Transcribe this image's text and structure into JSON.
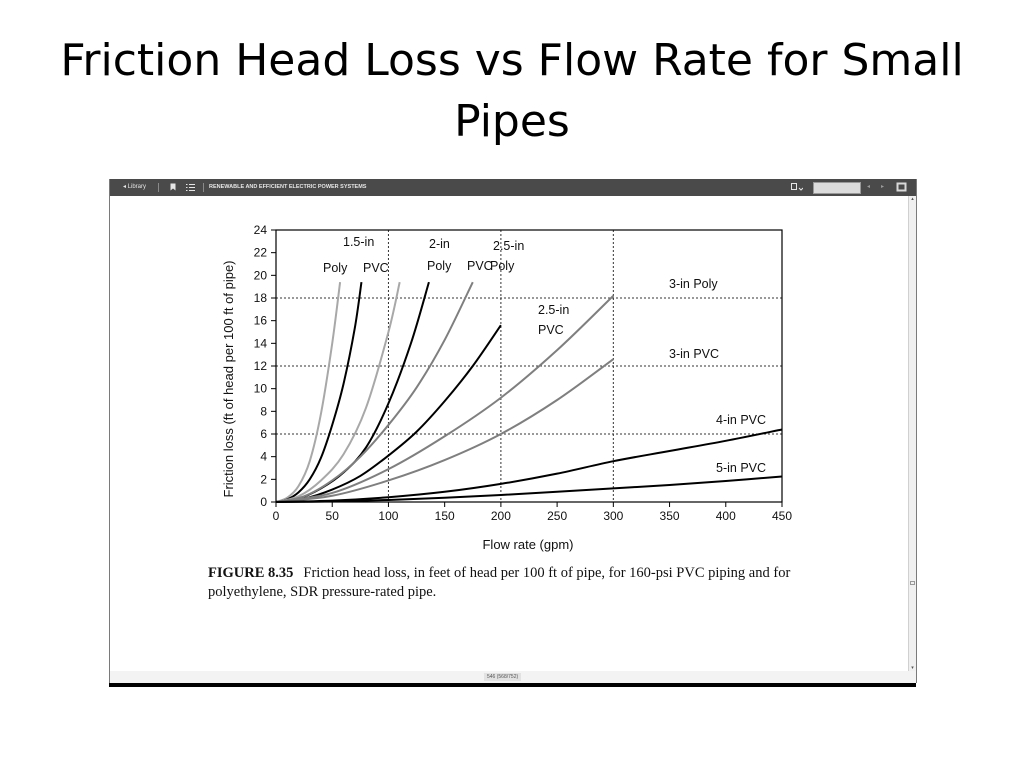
{
  "slide": {
    "title": "Friction Head Loss vs Flow Rate for Small Pipes"
  },
  "viewer": {
    "library_label": "◂ Library",
    "book_title": "RENEWABLE AND EFFICIENT ELECTRIC POWER SYSTEMS",
    "page_indicator": "546 (568/752)"
  },
  "icons": [
    "back-arrow-icon",
    "bookmark-icon",
    "list-icon",
    "page-options-icon",
    "search-icon",
    "prev-icon",
    "next-icon",
    "fullscreen-icon"
  ],
  "colors": {
    "black_curves": "#000000",
    "gray_curves": "#7f7f7f",
    "light_curves": "#a8a8a8",
    "toolbar": "#4a4a4a"
  },
  "figure": {
    "number": "FIGURE 8.35",
    "caption": "Friction head loss, in feet of head per 100 ft of pipe, for 160-psi PVC piping and for polyethylene, SDR pressure-rated pipe."
  },
  "chart_data": {
    "type": "line",
    "title": "",
    "xlabel": "Flow rate (gpm)",
    "ylabel": "Friction loss (ft of head per 100 ft of pipe)",
    "xlim": [
      0,
      450
    ],
    "ylim": [
      0,
      24
    ],
    "xticks": [
      0,
      50,
      100,
      150,
      200,
      250,
      300,
      350,
      400,
      450
    ],
    "yticks": [
      0,
      2,
      4,
      6,
      8,
      10,
      12,
      14,
      16,
      18,
      20,
      22,
      24
    ],
    "grid": "dotted lines at x = 100, 200, 300 and y = 6, 12, 18",
    "series": [
      {
        "key": "p15poly",
        "label_lines": [
          "",
          "Poly"
        ],
        "tone": "light",
        "x": [
          0,
          10,
          20,
          30,
          40,
          50,
          57
        ],
        "y": [
          0,
          0.38,
          1.4,
          3.6,
          7.8,
          14.0,
          19.4
        ]
      },
      {
        "key": "p15pvc",
        "label_lines": [
          "1.5-in",
          "PVC"
        ],
        "tone": "black",
        "x": [
          0,
          10,
          20,
          30,
          40,
          50,
          60,
          70,
          76
        ],
        "y": [
          0,
          0.23,
          0.85,
          2.0,
          3.9,
          6.8,
          10.4,
          15.3,
          19.4
        ]
      },
      {
        "key": "p2poly",
        "label_lines": [
          "",
          "Poly"
        ],
        "tone": "light",
        "x": [
          0,
          20,
          40,
          60,
          80,
          100,
          110
        ],
        "y": [
          0,
          0.5,
          1.9,
          4.2,
          8.3,
          15.0,
          19.4
        ]
      },
      {
        "key": "p2pvc",
        "label_lines": [
          "2-in",
          "PVC"
        ],
        "tone": "black",
        "x": [
          0,
          20,
          40,
          60,
          80,
          100,
          120,
          136
        ],
        "y": [
          0,
          0.3,
          1.2,
          2.6,
          4.8,
          8.7,
          14.0,
          19.4
        ]
      },
      {
        "key": "p25poly",
        "label_lines": [
          "2.5-in",
          "Poly"
        ],
        "tone": "gray",
        "x": [
          0,
          25,
          50,
          75,
          100,
          125,
          150,
          175
        ],
        "y": [
          0,
          0.5,
          1.9,
          4.0,
          6.8,
          10.1,
          14.3,
          19.4
        ]
      },
      {
        "key": "p25pvc",
        "label_lines": [
          "2.5-in",
          "PVC"
        ],
        "tone": "black",
        "x": [
          0,
          25,
          50,
          75,
          100,
          125,
          150,
          175,
          200
        ],
        "y": [
          0,
          0.3,
          1.1,
          2.3,
          4.1,
          6.2,
          8.9,
          12.0,
          15.6
        ]
      },
      {
        "key": "p3poly",
        "label_lines": [
          "3-in Poly"
        ],
        "tone": "gray",
        "x": [
          0,
          50,
          100,
          150,
          200,
          250,
          300
        ],
        "y": [
          0,
          0.8,
          2.9,
          5.8,
          9.2,
          13.4,
          18.2
        ]
      },
      {
        "key": "p3pvc",
        "label_lines": [
          "3-in PVC"
        ],
        "tone": "gray",
        "x": [
          0,
          50,
          100,
          150,
          200,
          250,
          300
        ],
        "y": [
          0,
          0.55,
          1.9,
          3.7,
          6.0,
          9.0,
          12.6
        ]
      },
      {
        "key": "p4pvc",
        "label_lines": [
          "4-in PVC"
        ],
        "tone": "black",
        "x": [
          0,
          50,
          100,
          150,
          200,
          250,
          300,
          350,
          400,
          450
        ],
        "y": [
          0,
          0.12,
          0.42,
          0.9,
          1.6,
          2.5,
          3.6,
          4.5,
          5.4,
          6.4
        ]
      },
      {
        "key": "p5pvc",
        "label_lines": [
          "5-in PVC"
        ],
        "tone": "black",
        "x": [
          0,
          50,
          100,
          150,
          200,
          250,
          300,
          350,
          400,
          450
        ],
        "y": [
          0,
          0.05,
          0.18,
          0.38,
          0.62,
          0.9,
          1.2,
          1.5,
          1.85,
          2.25
        ]
      }
    ]
  }
}
